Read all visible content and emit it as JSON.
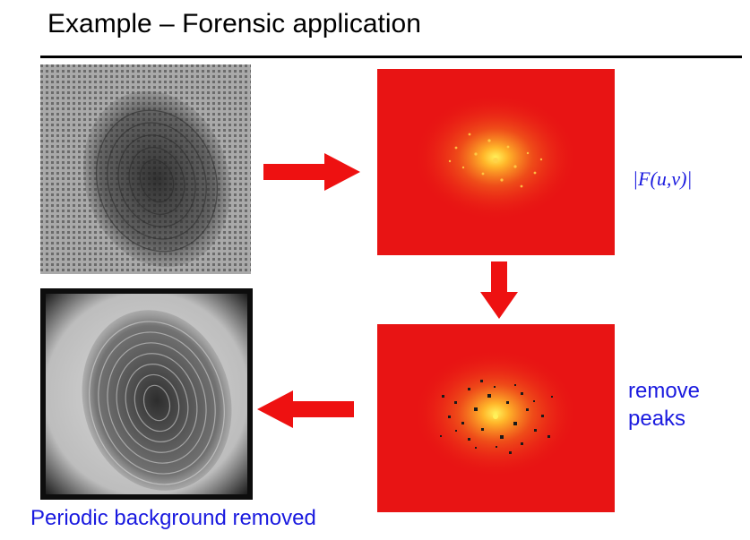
{
  "slide": {
    "title": "Example – Forensic application",
    "fourier_label": "|F(u,v)|",
    "remove_peaks_line1": "remove",
    "remove_peaks_line2": "peaks",
    "caption": "Periodic background removed"
  },
  "colors": {
    "label_blue": "#1a1adf",
    "arrow_red": "#ee1111",
    "spectrum_red": "#e81414",
    "spectrum_center": "#fff15a"
  },
  "panels": [
    {
      "name": "original-fingerprint-image",
      "content": "fingerprint with periodic grid background"
    },
    {
      "name": "fourier-spectrum-image",
      "content": "magnitude spectrum with periodic peaks"
    },
    {
      "name": "filtered-spectrum-image",
      "content": "spectrum with peaks removed"
    },
    {
      "name": "restored-fingerprint-image",
      "content": "fingerprint with background removed"
    }
  ],
  "arrows": [
    {
      "name": "arrow-right",
      "direction": "right"
    },
    {
      "name": "arrow-down",
      "direction": "down"
    },
    {
      "name": "arrow-left",
      "direction": "left"
    }
  ]
}
